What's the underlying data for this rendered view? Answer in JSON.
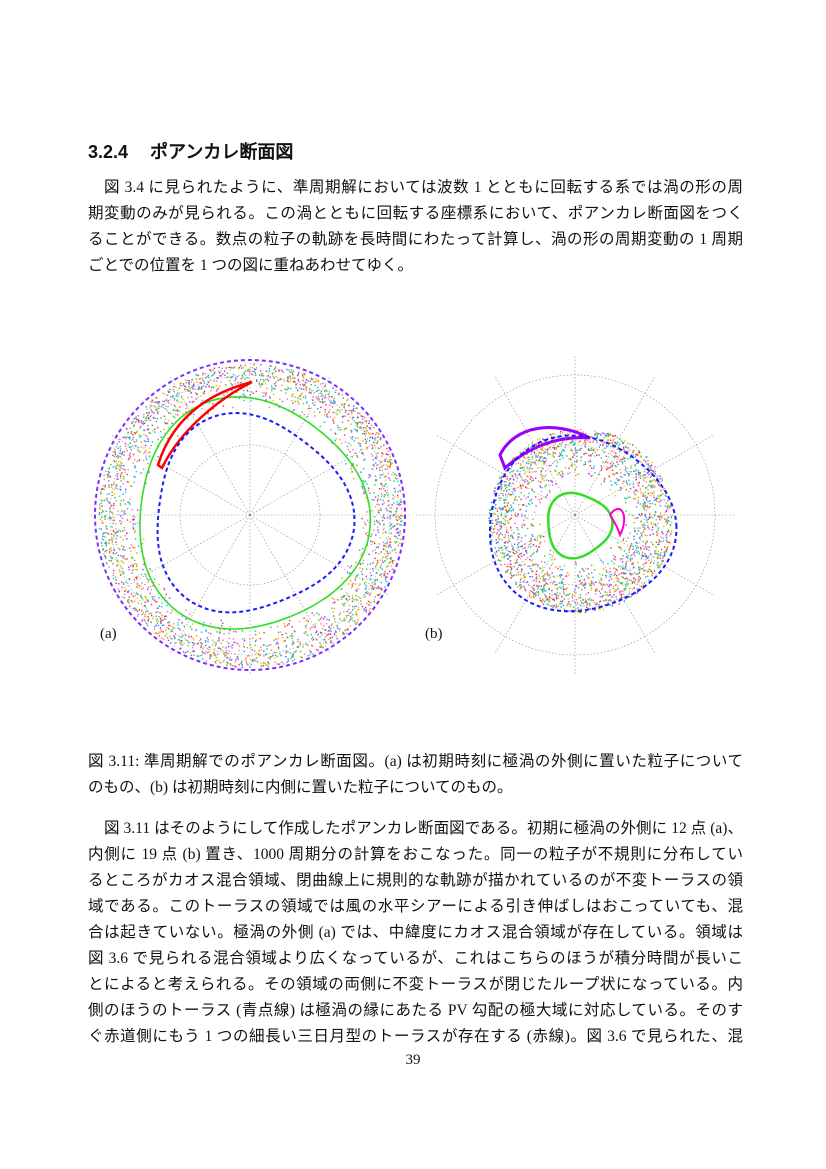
{
  "section": {
    "number": "3.2.4",
    "title": "ポアンカレ断面図"
  },
  "paragraph1": [
    "図 3.4 に見られたように、準周期解においては波数 1 とともに回転する系では渦の形の周",
    "期変動のみが見られる。この渦とともに回転する座標系において、ポアンカレ断面図をつく",
    "ることができる。数点の粒子の軌跡を長時間にわたって計算し、渦の形の周期変動の 1 周期",
    "ごとでの位置を 1 つの図に重ねあわせてゆく。"
  ],
  "figure": {
    "panel_a_label": "(a)",
    "panel_b_label": "(b)",
    "caption": [
      "図 3.11: 準周期解でのポアンカレ断面図。(a) は初期時刻に極渦の外側に置いた粒子について",
      "のもの、(b) は初期時刻に内側に置いた粒子についてのもの。"
    ],
    "colors": {
      "chaos_points": [
        "#ff3030",
        "#ff66cc",
        "#33cc33",
        "#3399ff",
        "#ff9900",
        "#9933ff",
        "#00cccc",
        "#cccc00"
      ],
      "boundary": "#1a1aff",
      "outer_boundary": "#7a2fff",
      "red_torus": "#ff0000",
      "green_torus": "#33dd22",
      "grid": "#888888"
    }
  },
  "paragraph2": [
    "図 3.11 はそのようにして作成したポアンカレ断面図である。初期に極渦の外側に 12 点 (a)、",
    "内側に 19 点 (b) 置き、1000 周期分の計算をおこなった。同一の粒子が不規則に分布してい",
    "るところがカオス混合領域、閉曲線上に規則的な軌跡が描かれているのが不変トーラスの領",
    "域である。このトーラスの領域では風の水平シアーによる引き伸ばしはおこっていても、混",
    "合は起きていない。極渦の外側 (a) では、中緯度にカオス混合領域が存在している。領域は",
    "図 3.6 で見られる混合領域より広くなっているが、これはこちらのほうが積分時間が長いこ",
    "とによると考えられる。その領域の両側に不変トーラスが閉じたループ状になっている。内",
    "側のほうのトーラス (青点線) は極渦の縁にあたる PV 勾配の極大域に対応している。そのす",
    "ぐ赤道側にもう 1 つの細長い三日月型のトーラスが存在する (赤線)。図 3.6 で見られた、混"
  ],
  "page_number": "39"
}
